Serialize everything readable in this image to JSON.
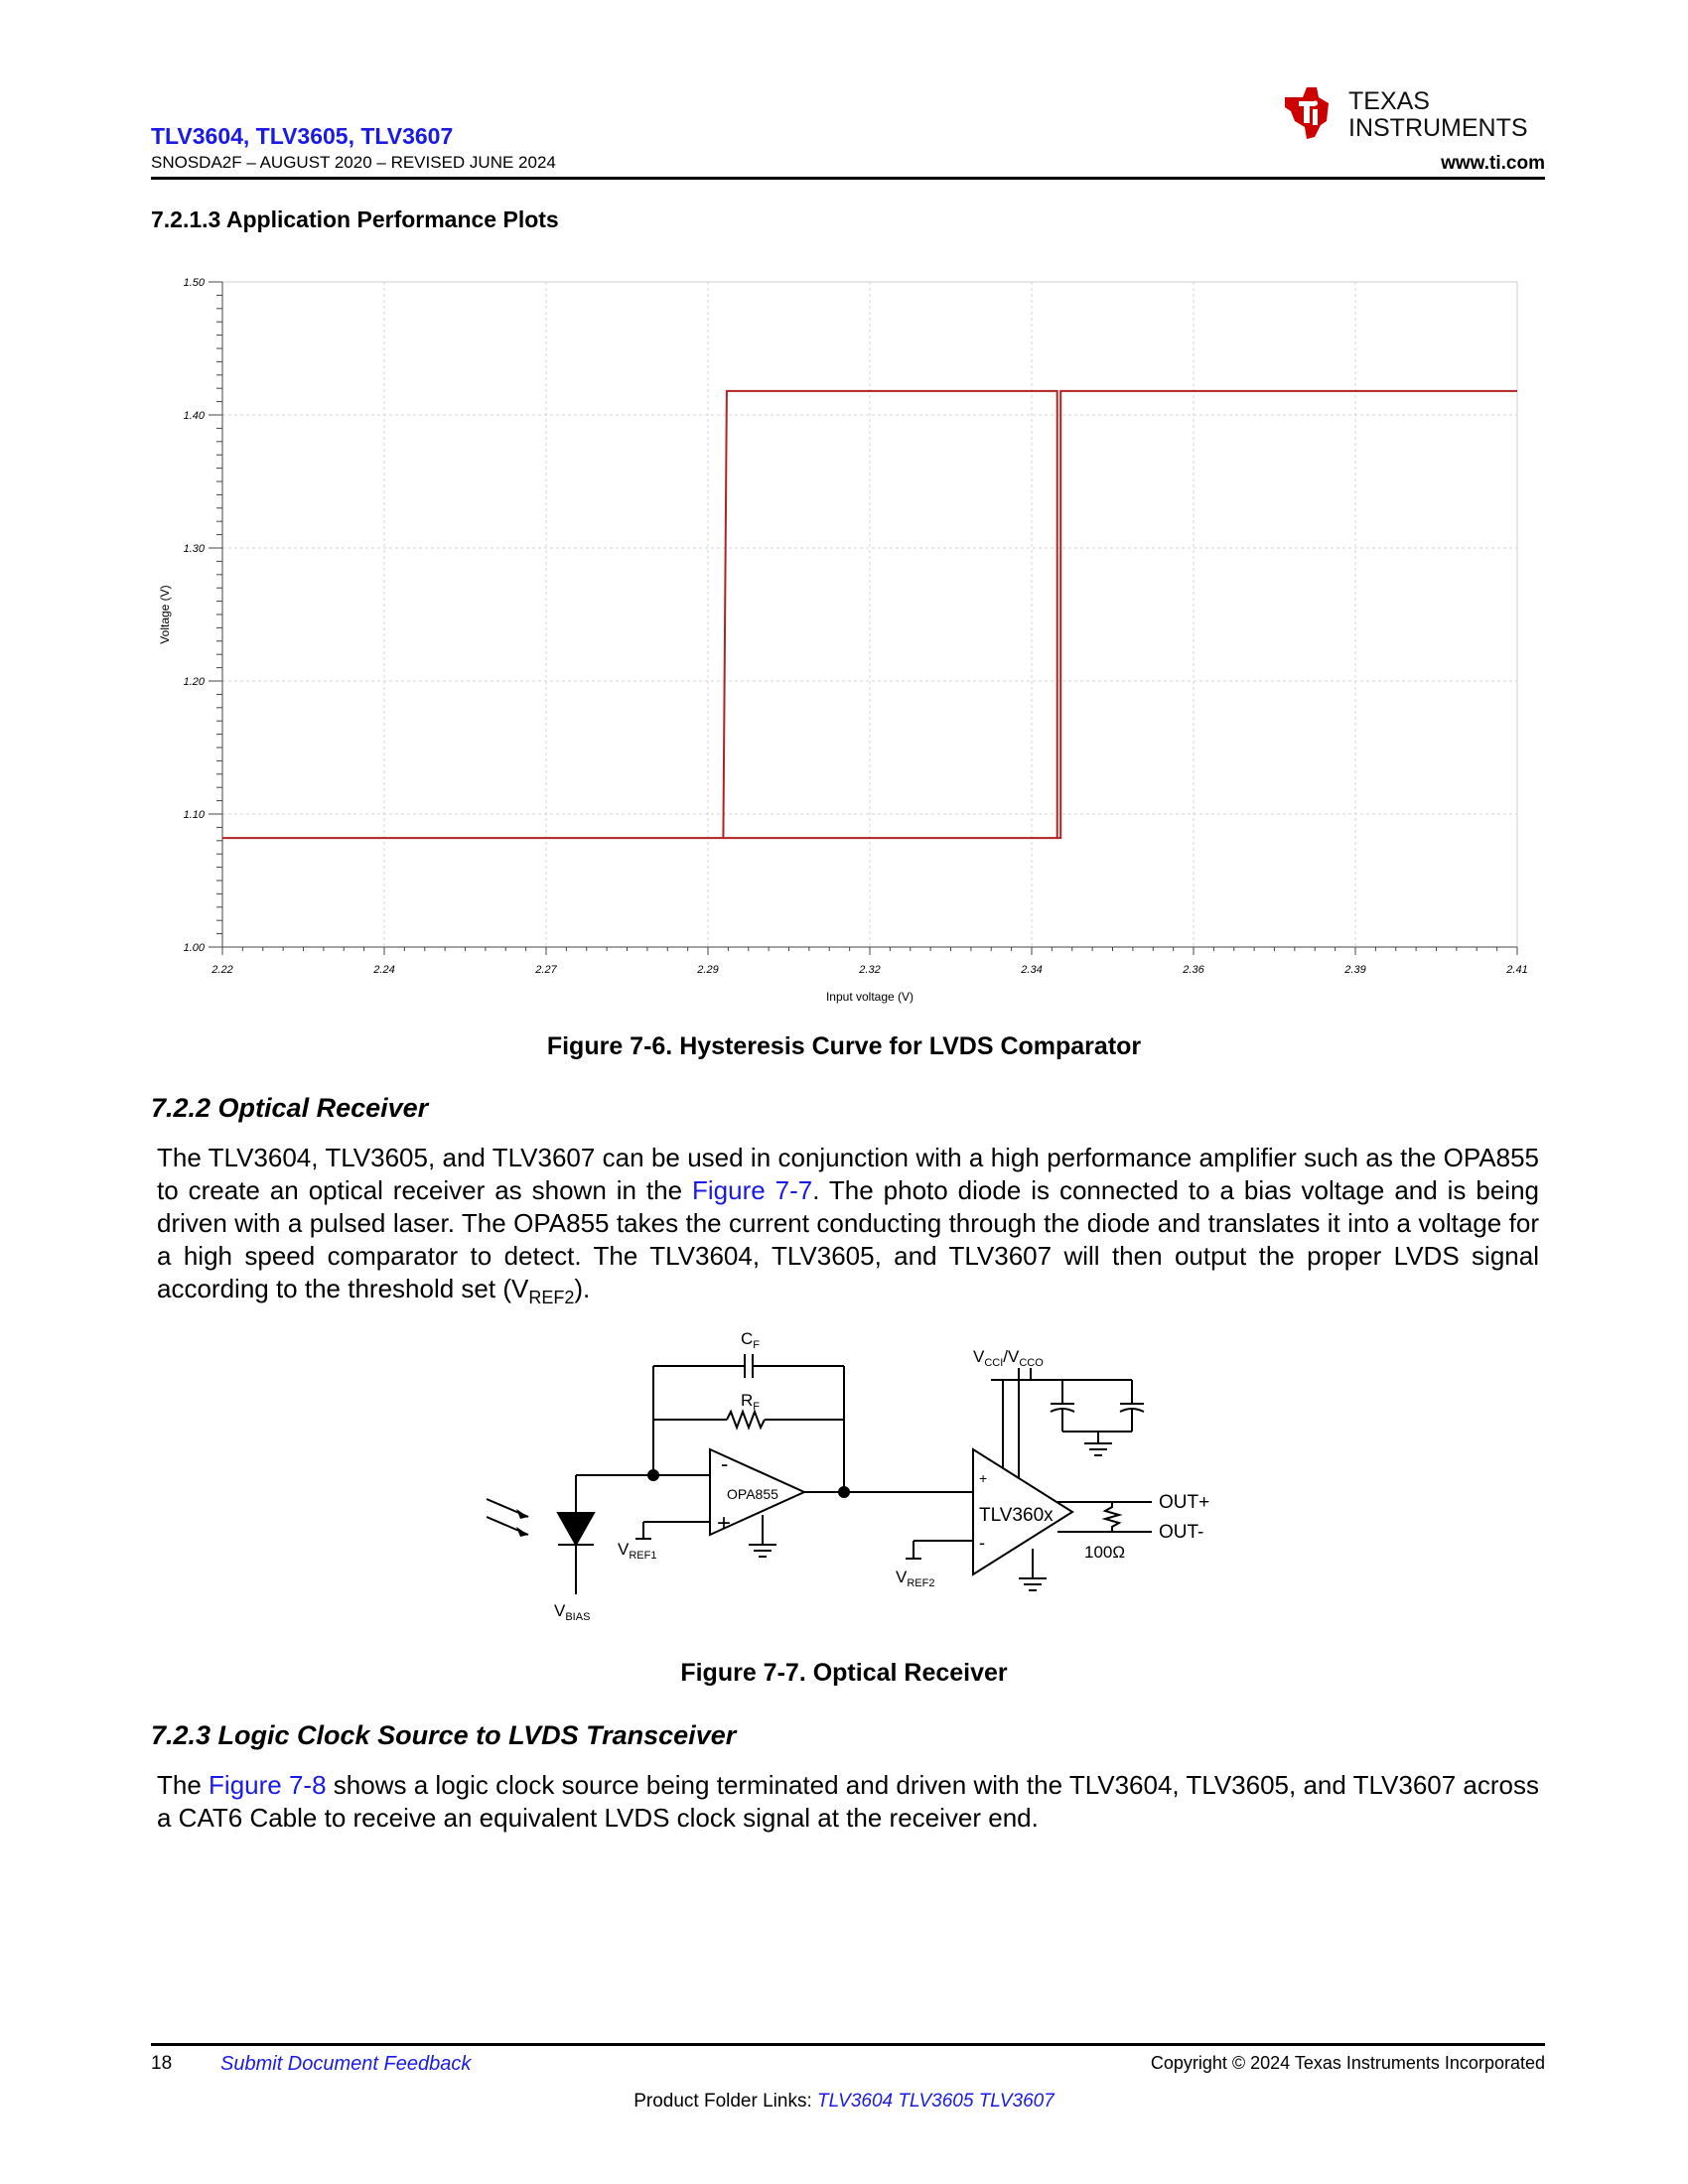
{
  "header": {
    "doc_title": "TLV3604, TLV3605, TLV3607",
    "revision": "SNOSDA2F – AUGUST 2020 – REVISED JUNE 2024",
    "logo_line1": "TEXAS",
    "logo_line2": "INSTRUMENTS",
    "url": "www.ti.com"
  },
  "section_721": {
    "heading": "7.2.1.3 Application Performance Plots"
  },
  "chart_data": {
    "type": "line",
    "title": "",
    "xlabel": "Input voltage (V)",
    "ylabel": "Voltage (V)",
    "xlim": [
      2.22,
      2.41
    ],
    "ylim": [
      1.0,
      1.5
    ],
    "x_tick_labels": [
      "2.22",
      "2.24",
      "2.27",
      "2.29",
      "2.32",
      "2.34",
      "2.36",
      "2.39",
      "2.41"
    ],
    "y_tick_labels": [
      "1.00",
      "1.10",
      "1.20",
      "1.30",
      "1.40",
      "1.50"
    ],
    "y_ticks": [
      1.0,
      1.1,
      1.2,
      1.3,
      1.4,
      1.5
    ],
    "grid": true,
    "line_color": "#b22222",
    "series": [
      {
        "x": [
          2.22,
          2.294,
          2.2945,
          2.3425,
          2.343,
          2.41
        ],
        "y": [
          1.082,
          1.082,
          1.418,
          1.418,
          1.082,
          1.082
        ],
        "note_path": "low branch then rising step"
      }
    ],
    "path_points": [
      [
        2.22,
        1.082
      ],
      [
        2.2935,
        1.082
      ],
      [
        2.294,
        1.418
      ],
      [
        2.3425,
        1.418
      ],
      [
        2.3425,
        1.082
      ],
      [
        2.2935,
        1.082
      ],
      [
        2.343,
        1.082
      ],
      [
        2.343,
        1.418
      ],
      [
        2.41,
        1.418
      ]
    ]
  },
  "figure_76": {
    "caption": "Figure 7-6. Hysteresis Curve for LVDS Comparator"
  },
  "section_722": {
    "heading": "7.2.2 Optical Receiver",
    "para_a": "The TLV3604, TLV3605, and TLV3607 can be used in conjunction with a high performance amplifier such as the OPA855 to create an optical receiver as shown in the ",
    "link": "Figure 7-7",
    "para_b": ". The photo diode is connected to a bias voltage and is being driven with a pulsed laser. The OPA855 takes the current conducting through the diode and translates it into a voltage for a high speed comparator to detect. The TLV3604, TLV3605, and TLV3607 will then output the proper LVDS signal according to the threshold set (V",
    "para_sub": "REF2",
    "para_c": ")."
  },
  "circuit": {
    "cf": "C",
    "cf_sub": "F",
    "rf": "R",
    "rf_sub": "F",
    "opamp": "OPA855",
    "comparator": "TLV360x",
    "vcc": "V",
    "vcc_sub1": "CCI",
    "vcc_mid": "/V",
    "vcc_sub2": "CCO",
    "out_plus": "OUT+",
    "out_minus": "OUT-",
    "resistor": "100Ω",
    "vref1": "V",
    "vref1_sub": "REF1",
    "vref2": "V",
    "vref2_sub": "REF2",
    "vbias": "V",
    "vbias_sub": "BIAS",
    "minus": "-",
    "plus": "+"
  },
  "figure_77": {
    "caption": "Figure 7-7. Optical Receiver"
  },
  "section_723": {
    "heading": "7.2.3 Logic Clock Source to LVDS Transceiver",
    "para_a": "The ",
    "link": "Figure 7-8",
    "para_b": " shows a logic clock source being terminated and driven with the TLV3604, TLV3605, and TLV3607 across a CAT6 Cable to receive an equivalent LVDS clock signal at the receiver end."
  },
  "footer": {
    "page_number": "18",
    "feedback": "Submit Document Feedback",
    "copyright": "Copyright © 2024 Texas Instruments Incorporated",
    "folder_label": "Product Folder Links: ",
    "folder_links": "TLV3604 TLV3605 TLV3607"
  }
}
